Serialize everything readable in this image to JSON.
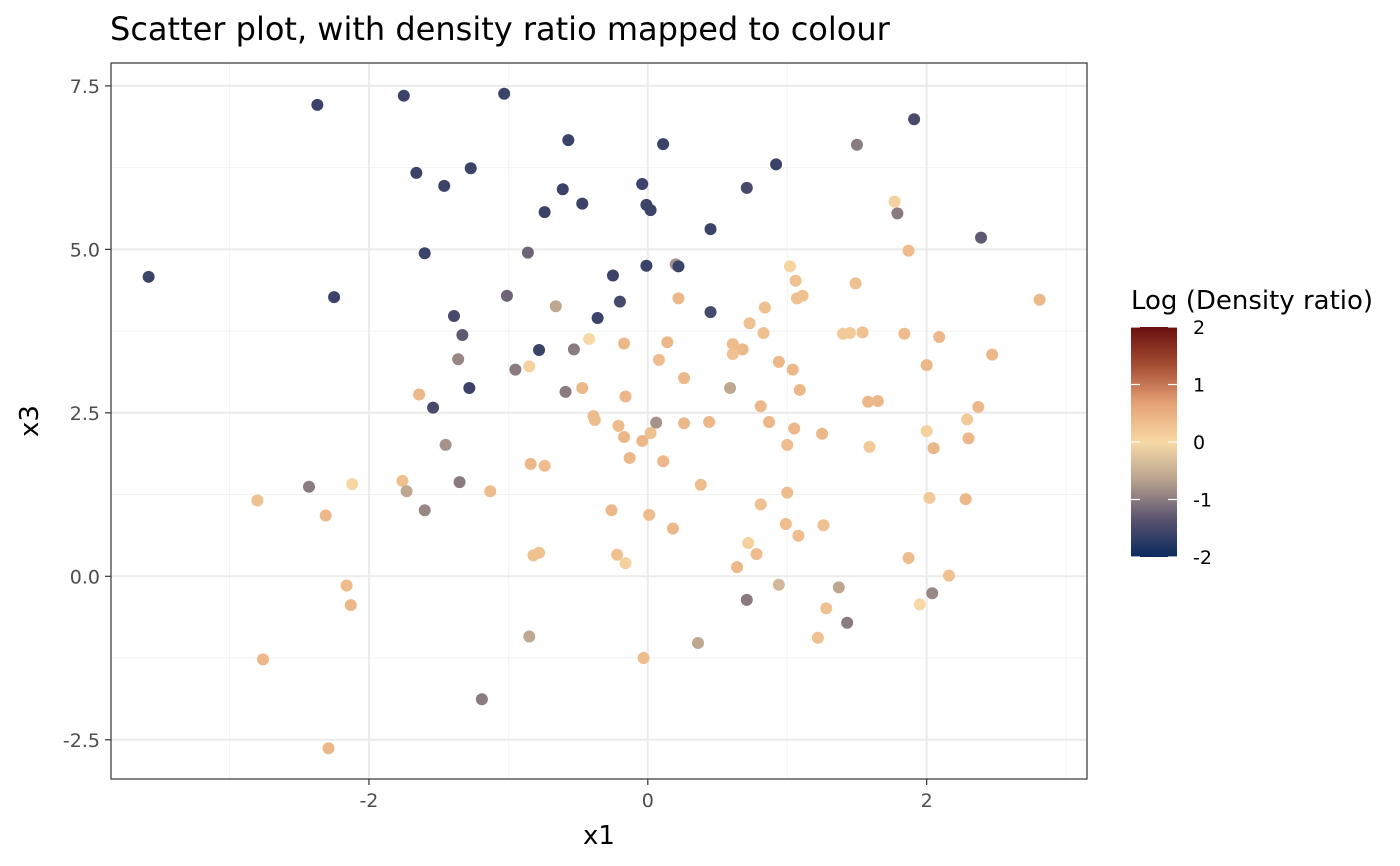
{
  "chart_data": {
    "type": "scatter",
    "title": "Scatter plot, with density ratio mapped to colour",
    "xlabel": "x1",
    "ylabel": "x3",
    "xlim": [
      -3.85,
      3.15
    ],
    "ylim": [
      -3.1,
      7.85
    ],
    "x_ticks": [
      -2,
      0,
      2
    ],
    "x_tick_labels": [
      "-2",
      "0",
      "2"
    ],
    "y_ticks": [
      -2.5,
      0,
      2.5,
      5,
      7.5
    ],
    "y_tick_labels": [
      "-2.5",
      "0.0",
      "2.5",
      "5.0",
      "7.5"
    ],
    "grid": true,
    "legend": {
      "title": "Log (Density ratio)",
      "placement": "right",
      "type": "colourbar",
      "range": [
        -2,
        2
      ],
      "ticks": [
        2,
        1,
        0,
        -1,
        -2
      ],
      "tick_labels": [
        "2",
        "1",
        "0",
        "-1",
        "-2"
      ],
      "colors": [
        "#0a2a5e",
        "#5c5470",
        "#b8a28e",
        "#f7d9a6",
        "#e5a276",
        "#a54d33",
        "#6b0f0f"
      ]
    },
    "points": [
      {
        "x": -3.58,
        "y": 4.58,
        "c": -1.6
      },
      {
        "x": -2.37,
        "y": 7.21,
        "c": -1.6
      },
      {
        "x": -1.75,
        "y": 7.35,
        "c": -1.6
      },
      {
        "x": -1.03,
        "y": 7.38,
        "c": -1.6
      },
      {
        "x": 1.91,
        "y": 6.99,
        "c": -1.5
      },
      {
        "x": -0.57,
        "y": 6.67,
        "c": -1.6
      },
      {
        "x": 0.11,
        "y": 6.61,
        "c": -1.6
      },
      {
        "x": 1.5,
        "y": 6.6,
        "c": -1.0
      },
      {
        "x": 0.92,
        "y": 6.3,
        "c": -1.6
      },
      {
        "x": -1.66,
        "y": 6.17,
        "c": -1.6
      },
      {
        "x": -1.27,
        "y": 6.24,
        "c": -1.6
      },
      {
        "x": -1.46,
        "y": 5.97,
        "c": -1.6
      },
      {
        "x": -0.61,
        "y": 5.92,
        "c": -1.6
      },
      {
        "x": -0.04,
        "y": 6.0,
        "c": -1.6
      },
      {
        "x": 0.71,
        "y": 5.94,
        "c": -1.5
      },
      {
        "x": 1.77,
        "y": 5.73,
        "c": 0.1
      },
      {
        "x": 1.79,
        "y": 5.55,
        "c": -1.0
      },
      {
        "x": -0.47,
        "y": 5.7,
        "c": -1.6
      },
      {
        "x": -0.01,
        "y": 5.68,
        "c": -1.6
      },
      {
        "x": 0.02,
        "y": 5.6,
        "c": -1.6
      },
      {
        "x": -0.74,
        "y": 5.57,
        "c": -1.6
      },
      {
        "x": 0.45,
        "y": 5.31,
        "c": -1.6
      },
      {
        "x": 2.39,
        "y": 5.18,
        "c": -1.3
      },
      {
        "x": -1.6,
        "y": 4.94,
        "c": -1.6
      },
      {
        "x": -0.86,
        "y": 4.95,
        "c": -1.2
      },
      {
        "x": 1.87,
        "y": 4.98,
        "c": 0.35
      },
      {
        "x": -0.01,
        "y": 4.75,
        "c": -1.6
      },
      {
        "x": 0.2,
        "y": 4.77,
        "c": -0.8
      },
      {
        "x": 0.22,
        "y": 4.74,
        "c": -1.6
      },
      {
        "x": 1.02,
        "y": 4.74,
        "c": 0.05
      },
      {
        "x": -0.25,
        "y": 4.6,
        "c": -1.6
      },
      {
        "x": 1.06,
        "y": 4.52,
        "c": 0.3
      },
      {
        "x": 1.49,
        "y": 4.48,
        "c": 0.3
      },
      {
        "x": -2.25,
        "y": 4.27,
        "c": -1.6
      },
      {
        "x": -1.01,
        "y": 4.29,
        "c": -1.2
      },
      {
        "x": 0.22,
        "y": 4.25,
        "c": 0.4
      },
      {
        "x": 1.07,
        "y": 4.25,
        "c": 0.3
      },
      {
        "x": 1.11,
        "y": 4.29,
        "c": 0.3
      },
      {
        "x": 2.81,
        "y": 4.23,
        "c": 0.4
      },
      {
        "x": -0.2,
        "y": 4.2,
        "c": -1.5
      },
      {
        "x": -0.66,
        "y": 4.13,
        "c": -0.6
      },
      {
        "x": 0.84,
        "y": 4.11,
        "c": 0.3
      },
      {
        "x": 0.45,
        "y": 4.04,
        "c": -1.5
      },
      {
        "x": -1.39,
        "y": 3.98,
        "c": -1.5
      },
      {
        "x": -0.36,
        "y": 3.95,
        "c": -1.6
      },
      {
        "x": 0.73,
        "y": 3.87,
        "c": 0.3
      },
      {
        "x": 1.4,
        "y": 3.71,
        "c": 0.2
      },
      {
        "x": 1.45,
        "y": 3.72,
        "c": 0.2
      },
      {
        "x": 1.54,
        "y": 3.73,
        "c": 0.3
      },
      {
        "x": 0.83,
        "y": 3.72,
        "c": 0.3
      },
      {
        "x": -1.33,
        "y": 3.69,
        "c": -1.3
      },
      {
        "x": 1.84,
        "y": 3.71,
        "c": 0.35
      },
      {
        "x": 2.09,
        "y": 3.66,
        "c": 0.4
      },
      {
        "x": -0.42,
        "y": 3.63,
        "c": 0.0
      },
      {
        "x": -0.17,
        "y": 3.56,
        "c": 0.4
      },
      {
        "x": 0.14,
        "y": 3.58,
        "c": 0.4
      },
      {
        "x": 0.61,
        "y": 3.55,
        "c": 0.35
      },
      {
        "x": -0.78,
        "y": 3.46,
        "c": -1.6
      },
      {
        "x": -0.53,
        "y": 3.47,
        "c": -1.0
      },
      {
        "x": 0.68,
        "y": 3.47,
        "c": 0.4
      },
      {
        "x": 0.61,
        "y": 3.4,
        "c": 0.3
      },
      {
        "x": 2.47,
        "y": 3.39,
        "c": 0.4
      },
      {
        "x": -1.36,
        "y": 3.32,
        "c": -0.9
      },
      {
        "x": 0.08,
        "y": 3.31,
        "c": 0.35
      },
      {
        "x": 0.94,
        "y": 3.28,
        "c": 0.4
      },
      {
        "x": 2.0,
        "y": 3.23,
        "c": 0.4
      },
      {
        "x": -0.85,
        "y": 3.21,
        "c": 0.1
      },
      {
        "x": -0.95,
        "y": 3.16,
        "c": -1.0
      },
      {
        "x": 1.04,
        "y": 3.16,
        "c": 0.4
      },
      {
        "x": 0.26,
        "y": 3.03,
        "c": 0.4
      },
      {
        "x": -1.28,
        "y": 2.88,
        "c": -1.6
      },
      {
        "x": -0.47,
        "y": 2.88,
        "c": 0.4
      },
      {
        "x": 0.59,
        "y": 2.88,
        "c": -0.6
      },
      {
        "x": 1.09,
        "y": 2.85,
        "c": 0.4
      },
      {
        "x": -0.59,
        "y": 2.82,
        "c": -1.0
      },
      {
        "x": -1.64,
        "y": 2.78,
        "c": 0.4
      },
      {
        "x": -0.16,
        "y": 2.75,
        "c": 0.4
      },
      {
        "x": 1.58,
        "y": 2.67,
        "c": 0.4
      },
      {
        "x": 1.65,
        "y": 2.68,
        "c": 0.4
      },
      {
        "x": -1.54,
        "y": 2.58,
        "c": -1.5
      },
      {
        "x": 0.81,
        "y": 2.6,
        "c": 0.4
      },
      {
        "x": 2.37,
        "y": 2.59,
        "c": 0.4
      },
      {
        "x": -0.39,
        "y": 2.45,
        "c": 0.35
      },
      {
        "x": -0.38,
        "y": 2.39,
        "c": 0.35
      },
      {
        "x": 2.29,
        "y": 2.4,
        "c": 0.2
      },
      {
        "x": 0.06,
        "y": 2.35,
        "c": -0.8
      },
      {
        "x": 0.26,
        "y": 2.34,
        "c": 0.4
      },
      {
        "x": 0.44,
        "y": 2.36,
        "c": 0.4
      },
      {
        "x": 0.87,
        "y": 2.36,
        "c": 0.4
      },
      {
        "x": -0.21,
        "y": 2.3,
        "c": 0.35
      },
      {
        "x": 1.05,
        "y": 2.26,
        "c": 0.4
      },
      {
        "x": 2.0,
        "y": 2.22,
        "c": 0.1
      },
      {
        "x": 0.02,
        "y": 2.19,
        "c": 0.3
      },
      {
        "x": 1.25,
        "y": 2.18,
        "c": 0.4
      },
      {
        "x": -0.17,
        "y": 2.13,
        "c": 0.4
      },
      {
        "x": 2.3,
        "y": 2.11,
        "c": 0.4
      },
      {
        "x": -0.04,
        "y": 2.07,
        "c": 0.4
      },
      {
        "x": 1.0,
        "y": 2.01,
        "c": 0.35
      },
      {
        "x": -1.45,
        "y": 2.01,
        "c": -0.8
      },
      {
        "x": 1.59,
        "y": 1.98,
        "c": 0.2
      },
      {
        "x": 2.05,
        "y": 1.96,
        "c": 0.4
      },
      {
        "x": -0.13,
        "y": 1.81,
        "c": 0.4
      },
      {
        "x": 0.11,
        "y": 1.76,
        "c": 0.4
      },
      {
        "x": -0.84,
        "y": 1.72,
        "c": 0.4
      },
      {
        "x": -0.74,
        "y": 1.69,
        "c": 0.35
      },
      {
        "x": -1.76,
        "y": 1.46,
        "c": 0.3
      },
      {
        "x": -2.12,
        "y": 1.41,
        "c": 0.05
      },
      {
        "x": -1.35,
        "y": 1.44,
        "c": -1.0
      },
      {
        "x": -2.43,
        "y": 1.37,
        "c": -1.0
      },
      {
        "x": 0.38,
        "y": 1.4,
        "c": 0.35
      },
      {
        "x": -1.73,
        "y": 1.3,
        "c": -0.6
      },
      {
        "x": -1.13,
        "y": 1.3,
        "c": 0.35
      },
      {
        "x": 1.0,
        "y": 1.28,
        "c": 0.35
      },
      {
        "x": 2.02,
        "y": 1.2,
        "c": 0.2
      },
      {
        "x": 2.28,
        "y": 1.18,
        "c": 0.4
      },
      {
        "x": -2.8,
        "y": 1.16,
        "c": 0.3
      },
      {
        "x": 0.81,
        "y": 1.1,
        "c": 0.3
      },
      {
        "x": -0.26,
        "y": 1.01,
        "c": 0.4
      },
      {
        "x": -1.6,
        "y": 1.01,
        "c": -0.9
      },
      {
        "x": 0.01,
        "y": 0.94,
        "c": 0.35
      },
      {
        "x": -2.31,
        "y": 0.93,
        "c": 0.4
      },
      {
        "x": 0.99,
        "y": 0.8,
        "c": 0.35
      },
      {
        "x": 1.26,
        "y": 0.78,
        "c": 0.3
      },
      {
        "x": 0.18,
        "y": 0.73,
        "c": 0.4
      },
      {
        "x": 1.08,
        "y": 0.62,
        "c": 0.35
      },
      {
        "x": 0.72,
        "y": 0.51,
        "c": 0.1
      },
      {
        "x": 0.78,
        "y": 0.34,
        "c": 0.35
      },
      {
        "x": -0.22,
        "y": 0.33,
        "c": 0.3
      },
      {
        "x": -0.78,
        "y": 0.36,
        "c": 0.3
      },
      {
        "x": -0.82,
        "y": 0.32,
        "c": 0.3
      },
      {
        "x": 1.87,
        "y": 0.28,
        "c": 0.35
      },
      {
        "x": -0.16,
        "y": 0.2,
        "c": 0.1
      },
      {
        "x": 0.64,
        "y": 0.14,
        "c": 0.4
      },
      {
        "x": 2.16,
        "y": 0.01,
        "c": 0.3
      },
      {
        "x": 0.94,
        "y": -0.13,
        "c": -0.4
      },
      {
        "x": -2.16,
        "y": -0.14,
        "c": 0.35
      },
      {
        "x": 1.37,
        "y": -0.17,
        "c": -0.6
      },
      {
        "x": 2.04,
        "y": -0.26,
        "c": -0.9
      },
      {
        "x": 0.71,
        "y": -0.36,
        "c": -1.0
      },
      {
        "x": 1.95,
        "y": -0.43,
        "c": 0.0
      },
      {
        "x": -2.13,
        "y": -0.44,
        "c": 0.4
      },
      {
        "x": 1.28,
        "y": -0.49,
        "c": 0.3
      },
      {
        "x": 1.43,
        "y": -0.71,
        "c": -1.0
      },
      {
        "x": -0.85,
        "y": -0.92,
        "c": -0.6
      },
      {
        "x": 1.22,
        "y": -0.94,
        "c": 0.3
      },
      {
        "x": 0.36,
        "y": -1.02,
        "c": -0.6
      },
      {
        "x": -2.76,
        "y": -1.27,
        "c": 0.4
      },
      {
        "x": -0.03,
        "y": -1.25,
        "c": 0.35
      },
      {
        "x": -1.19,
        "y": -1.88,
        "c": -1.0
      },
      {
        "x": -2.29,
        "y": -2.63,
        "c": 0.4
      }
    ]
  }
}
